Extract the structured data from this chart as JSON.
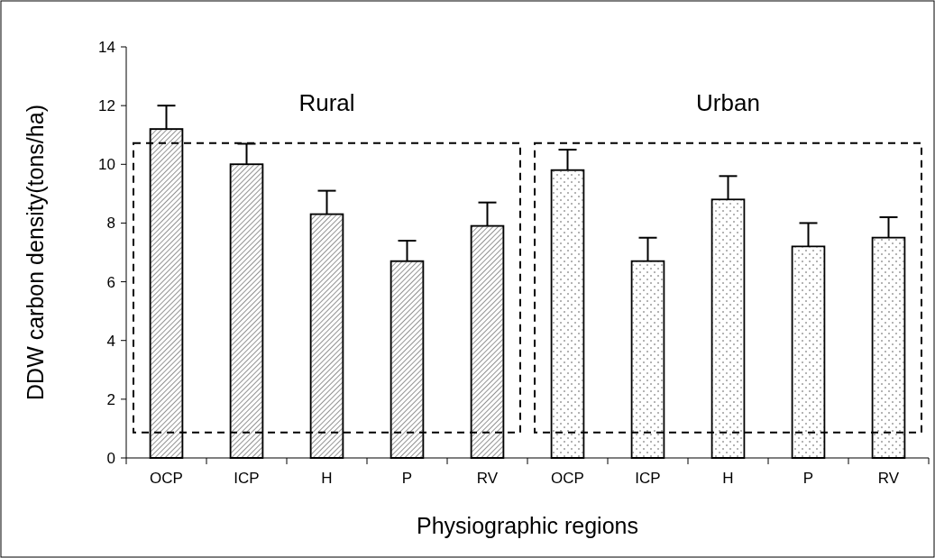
{
  "chart_data": {
    "type": "bar",
    "xlabel": "Physiographic regions",
    "ylabel": "DDW carbon density(tons/ha)",
    "categories": [
      "OCP",
      "ICP",
      "H",
      "P",
      "RV",
      "OCP",
      "ICP",
      "H",
      "P",
      "RV"
    ],
    "values": [
      11.2,
      10.0,
      8.3,
      6.7,
      7.9,
      9.8,
      6.7,
      8.8,
      7.2,
      7.5
    ],
    "errors": [
      0.8,
      0.7,
      0.8,
      0.7,
      0.8,
      0.7,
      0.8,
      0.8,
      0.8,
      0.7
    ],
    "colors": [
      "#a6a6a6",
      "#a6a6a6",
      "#a6a6a6",
      "#a6a6a6",
      "#a6a6a6",
      "#ffffff",
      "#ffffff",
      "#ffffff",
      "#ffffff",
      "#ffffff"
    ],
    "ylim": [
      0,
      14
    ],
    "yticks": [
      0,
      2,
      4,
      6,
      8,
      10,
      12,
      14
    ],
    "annotations": [
      "Rural",
      "Urban"
    ]
  }
}
